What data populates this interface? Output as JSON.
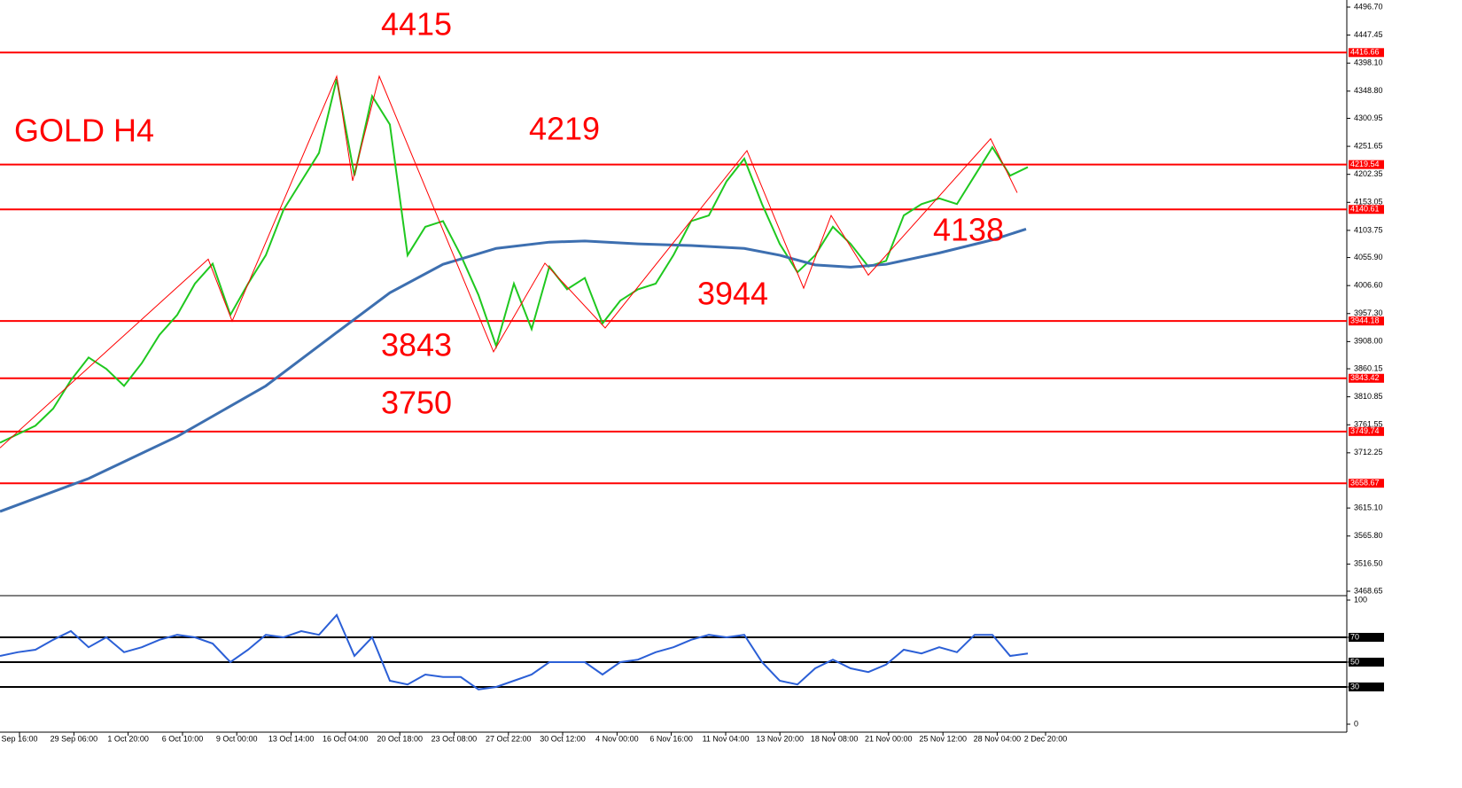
{
  "chart_data": [
    {
      "type": "line",
      "title": "GOLD H4",
      "annotations": [
        "4415",
        "4219",
        "4138",
        "3944",
        "3843",
        "3750"
      ],
      "xlim": [
        0,
        76
      ],
      "ylim": [
        3468.65,
        4496.7
      ],
      "yticks": [
        {
          "value": 4496.7,
          "label": "4496.70"
        },
        {
          "value": 4447.45,
          "label": "4447.45"
        },
        {
          "value": 4398.1,
          "label": "4398.10"
        },
        {
          "value": 4348.8,
          "label": "4348.80"
        },
        {
          "value": 4300.95,
          "label": "4300.95"
        },
        {
          "value": 4251.65,
          "label": "4251.65"
        },
        {
          "value": 4202.35,
          "label": "4202.35"
        },
        {
          "value": 4153.05,
          "label": "4153.05"
        },
        {
          "value": 4103.75,
          "label": "4103.75"
        },
        {
          "value": 4055.9,
          "label": "4055.90"
        },
        {
          "value": 4006.6,
          "label": "4006.60"
        },
        {
          "value": 3957.3,
          "label": "3957.30"
        },
        {
          "value": 3908.0,
          "label": "3908.00"
        },
        {
          "value": 3860.15,
          "label": "3860.15"
        },
        {
          "value": 3810.85,
          "label": "3810.85"
        },
        {
          "value": 3761.55,
          "label": "3761.55"
        },
        {
          "value": 3712.25,
          "label": "3712.25"
        },
        {
          "value": 3615.1,
          "label": "3615.10"
        },
        {
          "value": 3565.8,
          "label": "3565.80"
        },
        {
          "value": 3516.5,
          "label": "3516.50"
        },
        {
          "value": 3468.65,
          "label": "3468.65"
        }
      ],
      "levels": [
        4416.66,
        4219.54,
        4140.61,
        3944.18,
        3843.42,
        3749.74,
        3658.67
      ],
      "level_color": "#ff0000",
      "series": [
        {
          "color": "#1fc81f",
          "x": [
            0,
            1,
            2,
            3,
            4,
            5,
            6,
            7,
            8,
            9,
            10,
            11,
            12,
            13,
            14,
            15,
            16,
            17,
            18,
            19,
            20,
            21,
            22,
            23,
            24,
            25,
            26,
            27,
            28,
            29,
            30,
            31,
            32,
            33,
            34,
            35,
            36,
            37,
            38,
            39,
            40,
            41,
            42,
            43,
            44,
            45,
            46,
            47,
            48,
            49,
            50,
            51,
            52,
            53,
            54,
            55,
            56,
            57,
            58
          ],
          "values": [
            3730,
            3745,
            3760,
            3790,
            3840,
            3880,
            3860,
            3830,
            3870,
            3920,
            3955,
            4010,
            4045,
            3955,
            4010,
            4060,
            4140,
            4190,
            4240,
            4370,
            4200,
            4340,
            4290,
            4060,
            4110,
            4120,
            4060,
            3990,
            3900,
            4010,
            3930,
            4040,
            4000,
            4020,
            3940,
            3980,
            4000,
            4010,
            4060,
            4120,
            4130,
            4190,
            4230,
            4150,
            4080,
            4030,
            4060,
            4110,
            4080,
            4040,
            4050,
            4130,
            4150,
            4160,
            4150,
            4200,
            4250,
            4200,
            4215
          ]
        },
        {
          "color": "#3d6fb0",
          "x": [
            0,
            5,
            10,
            15,
            19,
            22,
            25,
            28,
            31,
            33,
            36,
            39,
            42,
            44,
            46,
            48,
            50,
            53,
            56,
            57.9
          ],
          "values": [
            3609,
            3667,
            3741,
            3830,
            3924,
            3994,
            4044,
            4072,
            4083,
            4085,
            4080,
            4077,
            4072,
            4060,
            4043,
            4039,
            4044,
            4064,
            4087,
            4106
          ]
        },
        {
          "color": "#ff0000",
          "x": [
            0,
            11.75,
            13.1,
            19,
            19.9,
            21.4,
            27.85,
            30.75,
            34.15,
            42.15,
            45.35,
            46.9,
            49,
            55.9,
            57.4
          ],
          "values": [
            3721,
            4053,
            3944,
            4375,
            4191,
            4375,
            3890,
            4046,
            3932,
            4244,
            4002,
            4130,
            4025,
            4265,
            4170
          ]
        }
      ]
    },
    {
      "type": "line",
      "xlim": [
        0,
        76
      ],
      "ylim": [
        0,
        100
      ],
      "yticks": [
        0,
        30,
        50,
        70,
        100
      ],
      "levels": [
        70,
        50,
        30
      ],
      "xticks": [
        {
          "value": 1.1,
          "label": "Sep 16:00"
        },
        {
          "value": 4.17,
          "label": "29 Sep 06:00"
        },
        {
          "value": 7.23,
          "label": "1 Oct 20:00"
        },
        {
          "value": 10.3,
          "label": "6 Oct 10:00"
        },
        {
          "value": 13.36,
          "label": "9 Oct 00:00"
        },
        {
          "value": 16.43,
          "label": "13 Oct 14:00"
        },
        {
          "value": 19.49,
          "label": "16 Oct 04:00"
        },
        {
          "value": 22.56,
          "label": "20 Oct 18:00"
        },
        {
          "value": 25.62,
          "label": "23 Oct 08:00"
        },
        {
          "value": 28.69,
          "label": "27 Oct 22:00"
        },
        {
          "value": 31.75,
          "label": "30 Oct 12:00"
        },
        {
          "value": 34.82,
          "label": "4 Nov 00:00"
        },
        {
          "value": 37.88,
          "label": "6 Nov 16:00"
        },
        {
          "value": 40.95,
          "label": "11 Nov 04:00"
        },
        {
          "value": 44.01,
          "label": "13 Nov 20:00"
        },
        {
          "value": 47.08,
          "label": "18 Nov 08:00"
        },
        {
          "value": 50.14,
          "label": "21 Nov 00:00"
        },
        {
          "value": 53.21,
          "label": "25 Nov 12:00"
        },
        {
          "value": 56.27,
          "label": "28 Nov 04:00"
        },
        {
          "value": 59.0,
          "label": "2 Dec 20:00"
        }
      ],
      "series": [
        {
          "color": "#2b5fd6",
          "x": [
            0,
            1,
            2,
            3,
            4,
            5,
            6,
            7,
            8,
            9,
            10,
            11,
            12,
            13,
            14,
            15,
            16,
            17,
            18,
            19,
            20,
            21,
            22,
            23,
            24,
            25,
            26,
            27,
            28,
            29,
            30,
            31,
            32,
            33,
            34,
            35,
            36,
            37,
            38,
            39,
            40,
            41,
            42,
            43,
            44,
            45,
            46,
            47,
            48,
            49,
            50,
            51,
            52,
            53,
            54,
            55,
            56,
            57,
            58
          ],
          "values": [
            55,
            58,
            60,
            68,
            75,
            62,
            70,
            58,
            62,
            68,
            72,
            70,
            65,
            50,
            60,
            72,
            70,
            75,
            72,
            88,
            55,
            70,
            35,
            32,
            40,
            38,
            38,
            28,
            30,
            35,
            40,
            50,
            50,
            50,
            40,
            50,
            52,
            58,
            62,
            68,
            72,
            70,
            72,
            50,
            35,
            32,
            45,
            52,
            45,
            42,
            48,
            60,
            57,
            62,
            58,
            72,
            72,
            55,
            57
          ]
        }
      ]
    }
  ]
}
